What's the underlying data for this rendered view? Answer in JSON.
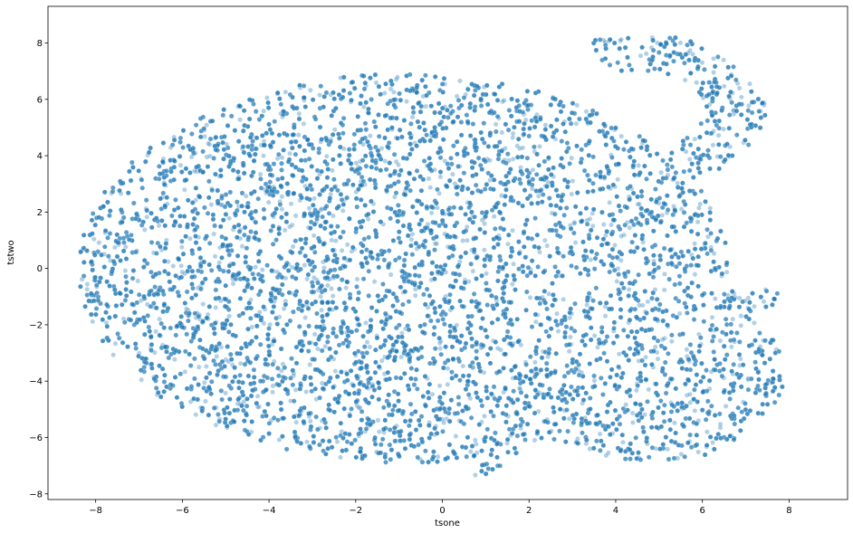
{
  "chart_data": {
    "type": "scatter",
    "title": "",
    "xlabel": "tsone",
    "ylabel": "tstwo",
    "xlim": [
      -9.1,
      9.35
    ],
    "ylim": [
      -8.2,
      9.3
    ],
    "xticks": [
      -8,
      -6,
      -4,
      -2,
      0,
      2,
      4,
      6,
      8
    ],
    "yticks": [
      -8,
      -6,
      -4,
      -2,
      0,
      2,
      4,
      6,
      8
    ],
    "xtick_labels": [
      "−8",
      "−6",
      "−4",
      "−2",
      "0",
      "2",
      "4",
      "6",
      "8"
    ],
    "ytick_labels": [
      "−8",
      "−6",
      "−4",
      "−2",
      "0",
      "2",
      "4",
      "6",
      "8"
    ],
    "grid": false,
    "legend": false,
    "marker_color": "#1f77b4",
    "marker_alpha": 0.35,
    "approx_points": 40000,
    "series": [
      {
        "description": "main ellipse cluster",
        "center": [
          -1.5,
          0.0
        ],
        "x_range": [
          -8.3,
          6.7
        ],
        "y_range": [
          -6.6,
          7.4
        ]
      },
      {
        "description": "upper-right hook arm",
        "x_range": [
          1.8,
          6.7
        ],
        "y_range": [
          4.0,
          8.5
        ]
      },
      {
        "description": "lower-right tail lobe",
        "x_range": [
          0.8,
          7.9
        ],
        "y_range": [
          -7.3,
          -0.2
        ]
      }
    ]
  }
}
